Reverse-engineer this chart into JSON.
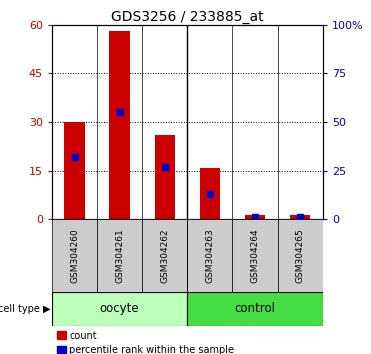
{
  "title": "GDS3256 / 233885_at",
  "samples": [
    "GSM304260",
    "GSM304261",
    "GSM304262",
    "GSM304263",
    "GSM304264",
    "GSM304265"
  ],
  "count_values": [
    30,
    58,
    26,
    16,
    1.5,
    1.5
  ],
  "percentile_values": [
    32,
    55,
    27,
    13,
    1.5,
    1.5
  ],
  "groups": [
    {
      "label": "oocyte",
      "indices": [
        0,
        1,
        2
      ],
      "color": "#bbffbb"
    },
    {
      "label": "control",
      "indices": [
        3,
        4,
        5
      ],
      "color": "#44dd44"
    }
  ],
  "left_ylim": [
    0,
    60
  ],
  "right_ylim": [
    0,
    100
  ],
  "left_yticks": [
    0,
    15,
    30,
    45,
    60
  ],
  "right_yticks": [
    0,
    25,
    50,
    75,
    100
  ],
  "right_yticklabels": [
    "0",
    "25",
    "50",
    "75",
    "100%"
  ],
  "bar_color": "#cc0000",
  "marker_color": "#0000cc",
  "bar_width": 0.45,
  "tick_label_bg": "#cccccc",
  "title_fontsize": 10,
  "axis_label_color_left": "#cc0000",
  "axis_label_color_right": "#0000cc"
}
